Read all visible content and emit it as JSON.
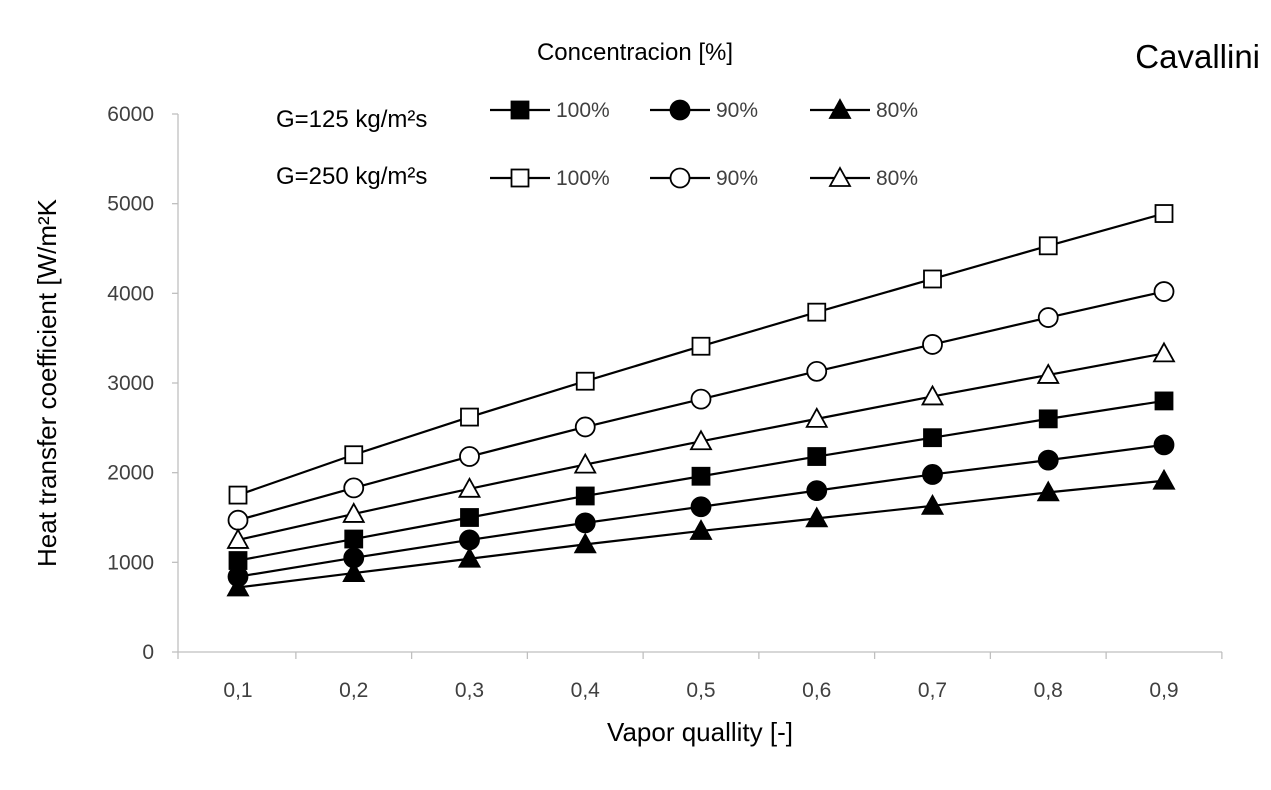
{
  "chart_data": {
    "type": "line",
    "title": "Cavallini",
    "xlabel": "Vapor quallity [-]",
    "ylabel": "Heat transfer coefficient [W/m²K",
    "x": [
      "0,1",
      "0,2",
      "0,3",
      "0,4",
      "0,5",
      "0,6",
      "0,7",
      "0,8",
      "0,9"
    ],
    "x_values": [
      0.1,
      0.2,
      0.3,
      0.4,
      0.5,
      0.6,
      0.7,
      0.8,
      0.9
    ],
    "ylim": [
      0,
      6000
    ],
    "yticks": [
      "0",
      "1000",
      "2000",
      "3000",
      "4000",
      "5000",
      "6000"
    ],
    "grid": false,
    "legend": {
      "title": "Concentracion [%]",
      "placement": "top",
      "groups": [
        {
          "label": "G=125 kg/m²s",
          "series": [
            0,
            1,
            2
          ]
        },
        {
          "label": "G=250 kg/m²s",
          "series": [
            3,
            4,
            5
          ]
        }
      ]
    },
    "series": [
      {
        "name": "100%",
        "group": "G=125 kg/m²s",
        "marker": "square",
        "fill": "filled",
        "values": [
          1020,
          1260,
          1500,
          1740,
          1960,
          2180,
          2390,
          2600,
          2800
        ]
      },
      {
        "name": "90%",
        "group": "G=125 kg/m²s",
        "marker": "circle",
        "fill": "filled",
        "values": [
          840,
          1050,
          1250,
          1440,
          1620,
          1800,
          1980,
          2140,
          2310
        ]
      },
      {
        "name": "80%",
        "group": "G=125 kg/m²s",
        "marker": "triangle",
        "fill": "filled",
        "values": [
          720,
          880,
          1040,
          1200,
          1350,
          1490,
          1630,
          1780,
          1910
        ]
      },
      {
        "name": "100%",
        "group": "G=250 kg/m²s",
        "marker": "square",
        "fill": "open",
        "values": [
          1750,
          2200,
          2620,
          3020,
          3410,
          3790,
          4160,
          4530,
          4890
        ]
      },
      {
        "name": "90%",
        "group": "G=250 kg/m²s",
        "marker": "circle",
        "fill": "open",
        "values": [
          1470,
          1830,
          2180,
          2510,
          2820,
          3130,
          3430,
          3730,
          4020
        ]
      },
      {
        "name": "80%",
        "group": "G=250 kg/m²s",
        "marker": "triangle",
        "fill": "open",
        "values": [
          1250,
          1540,
          1820,
          2090,
          2350,
          2600,
          2850,
          3090,
          3330
        ]
      }
    ],
    "colors": {
      "line": "#000000",
      "marker_fill_open": "#ffffff",
      "axis": "#bfbfbf",
      "tick_text": "#404040"
    }
  }
}
